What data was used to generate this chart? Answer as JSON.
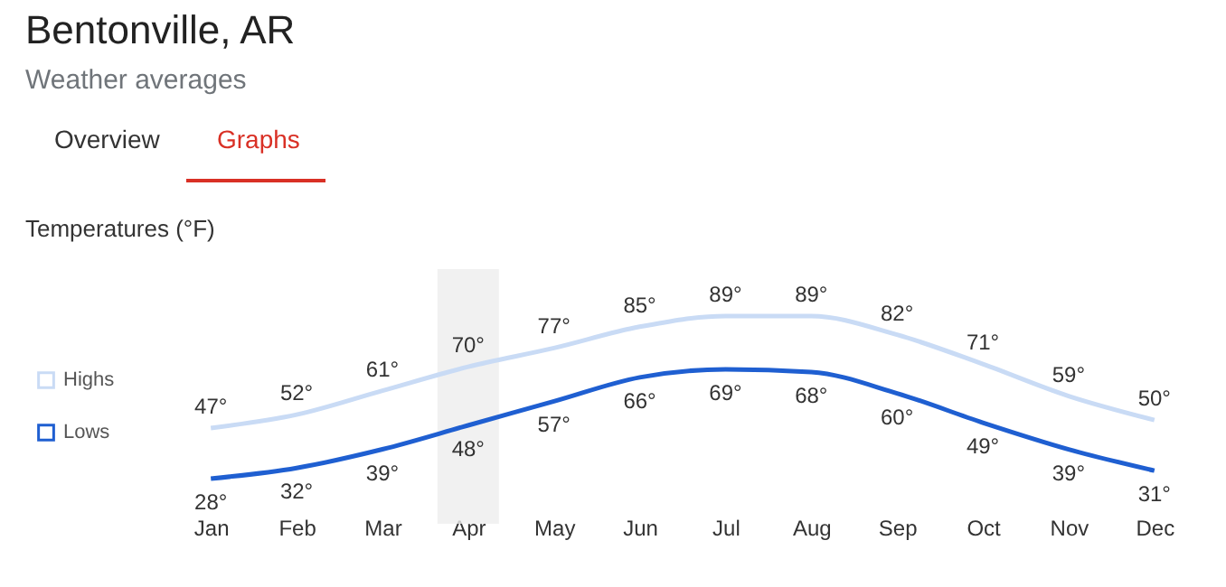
{
  "chart_data": {
    "type": "line",
    "title": "Bentonville, AR",
    "subtitle": "Weather averages",
    "ylabel": "Temperatures (°F)",
    "annotations": [
      "Overview",
      "Graphs"
    ],
    "categories": [
      "Jan",
      "Feb",
      "Mar",
      "Apr",
      "May",
      "Jun",
      "Jul",
      "Aug",
      "Sep",
      "Oct",
      "Nov",
      "Dec"
    ],
    "series": [
      {
        "name": "Highs",
        "color": "#c9dbf5",
        "values": [
          47,
          52,
          61,
          70,
          77,
          85,
          89,
          89,
          82,
          71,
          59,
          50
        ],
        "value_labels": [
          "47°",
          "52°",
          "61°",
          "70°",
          "77°",
          "85°",
          "89°",
          "89°",
          "82°",
          "71°",
          "59°",
          "50°"
        ]
      },
      {
        "name": "Lows",
        "color": "#1f5fd1",
        "values": [
          28,
          32,
          39,
          48,
          57,
          66,
          69,
          68,
          60,
          49,
          39,
          31
        ],
        "value_labels": [
          "28°",
          "32°",
          "39°",
          "48°",
          "57°",
          "66°",
          "69°",
          "68°",
          "60°",
          "49°",
          "39°",
          "31°"
        ]
      }
    ],
    "bands": [
      {
        "axis": "x",
        "from": "Apr",
        "to": "Apr",
        "color": "#eeeeee"
      }
    ],
    "tick_labels": "x",
    "grid": false,
    "legend": "left",
    "marker": "none",
    "line_style": "solid"
  }
}
